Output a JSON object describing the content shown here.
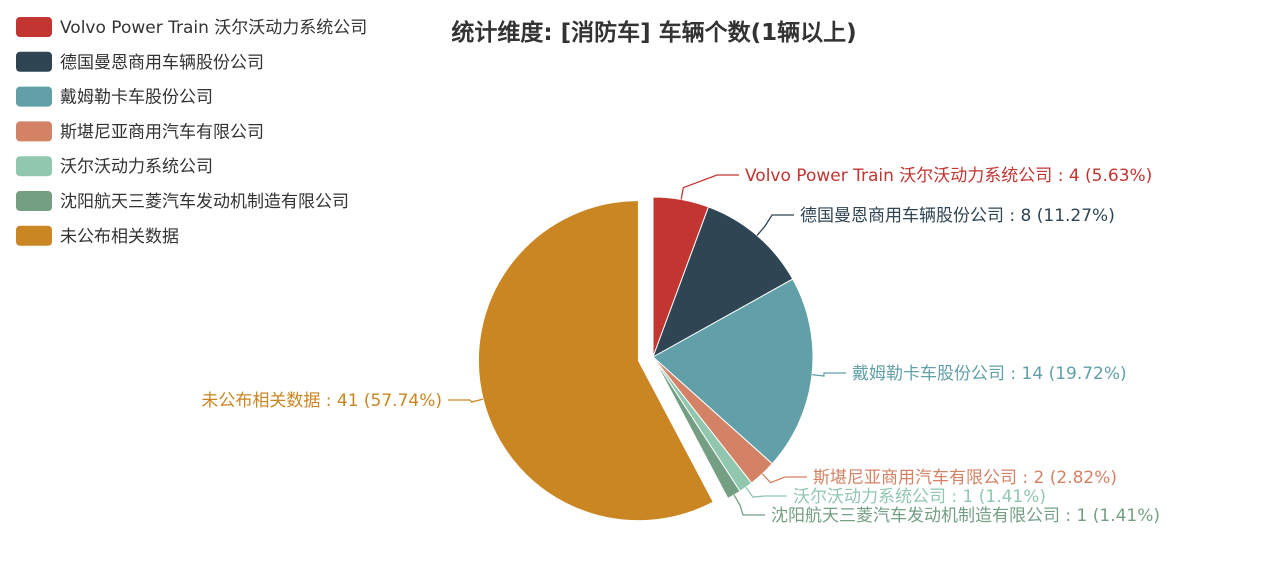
{
  "chart_data": {
    "type": "pie",
    "title": "统计维度: [消防车] 车辆个数(1辆以上)",
    "legend_position": "top-left",
    "highlighted_slice": "未公布相关数据",
    "slices": [
      {
        "name": "Volvo Power Train 沃尔沃动力系统公司",
        "value": 4,
        "percent": "5.63%",
        "color": "#c23531",
        "label": "Volvo Power Train 沃尔沃动力系统公司 : 4 (5.63%)"
      },
      {
        "name": "德国曼恩商用车辆股份公司",
        "value": 8,
        "percent": "11.27%",
        "color": "#2f4554",
        "label": "德国曼恩商用车辆股份公司 : 8 (11.27%)"
      },
      {
        "name": "戴姆勒卡车股份公司",
        "value": 14,
        "percent": "19.72%",
        "color": "#61a0a8",
        "label": "戴姆勒卡车股份公司 : 14 (19.72%)"
      },
      {
        "name": "斯堪尼亚商用汽车有限公司",
        "value": 2,
        "percent": "2.82%",
        "color": "#d48265",
        "label": "斯堪尼亚商用汽车有限公司 : 2 (2.82%)"
      },
      {
        "name": "沃尔沃动力系统公司",
        "value": 1,
        "percent": "1.41%",
        "color": "#91c7ae",
        "label": "沃尔沃动力系统公司 : 1 (1.41%)"
      },
      {
        "name": "沈阳航天三菱汽车发动机制造有限公司",
        "value": 1,
        "percent": "1.41%",
        "color": "#749f83",
        "label": "沈阳航天三菱汽车发动机制造有限公司 : 1 (1.41%)"
      },
      {
        "name": "未公布相关数据",
        "value": 41,
        "percent": "57.74%",
        "color": "#ca8622",
        "label": "未公布相关数据 : 41 (57.74%)"
      }
    ]
  }
}
